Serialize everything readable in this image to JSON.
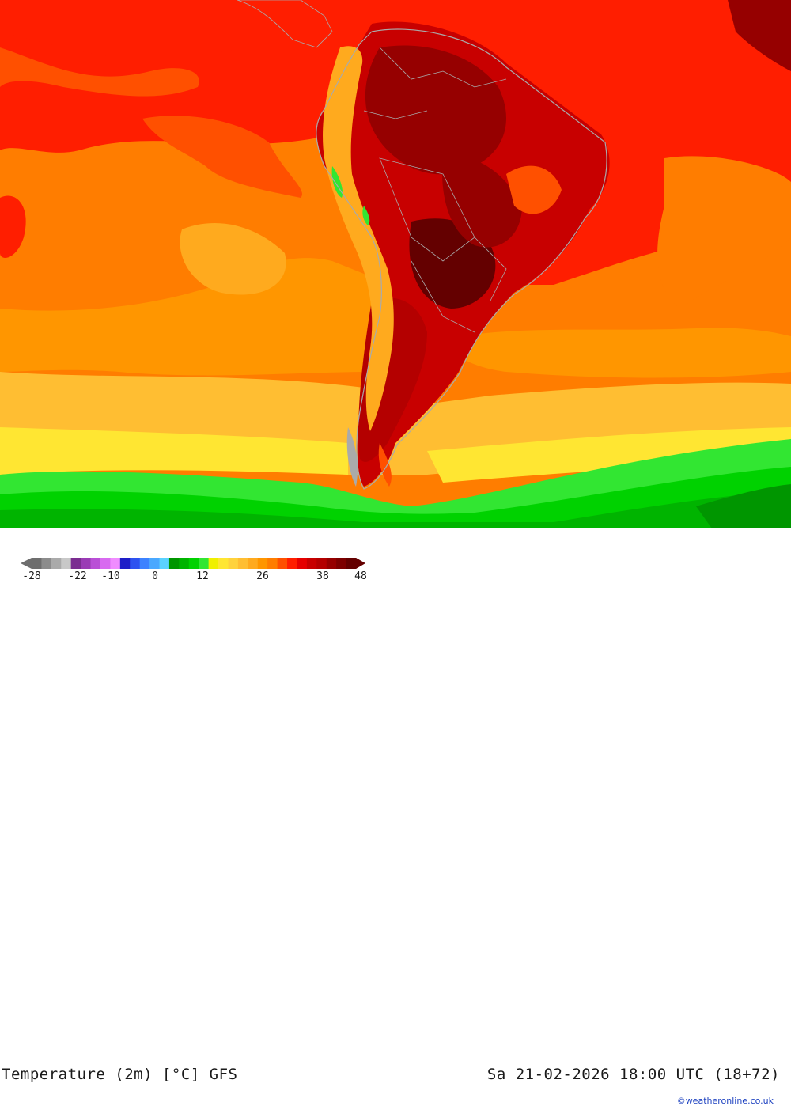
{
  "map": {
    "title": "Temperature (2m) [°C] GFS",
    "datetime": "Sa 21-02-2026 18:00 UTC (18+72)",
    "credit": "©weatheronline.co.uk"
  },
  "legend": {
    "colors": [
      "#6e6e6e",
      "#8c8c8c",
      "#aaaaaa",
      "#c8c8c8",
      "#7b2d91",
      "#9a3bb5",
      "#b94fd6",
      "#d86af0",
      "#f08cff",
      "#1e1ec8",
      "#2e52f0",
      "#3c82ff",
      "#4aa8ff",
      "#5ad2ff",
      "#009600",
      "#00b400",
      "#00d200",
      "#32e632",
      "#f0f000",
      "#ffe632",
      "#ffd23c",
      "#ffbe32",
      "#ffaa1e",
      "#ff9600",
      "#ff7d00",
      "#ff5000",
      "#ff1e00",
      "#e60000",
      "#c80000",
      "#b40000",
      "#960000",
      "#7d0000",
      "#640000"
    ],
    "tick_labels": [
      "-28",
      "-22",
      "-10",
      "0",
      "12",
      "26",
      "38",
      "48"
    ]
  }
}
